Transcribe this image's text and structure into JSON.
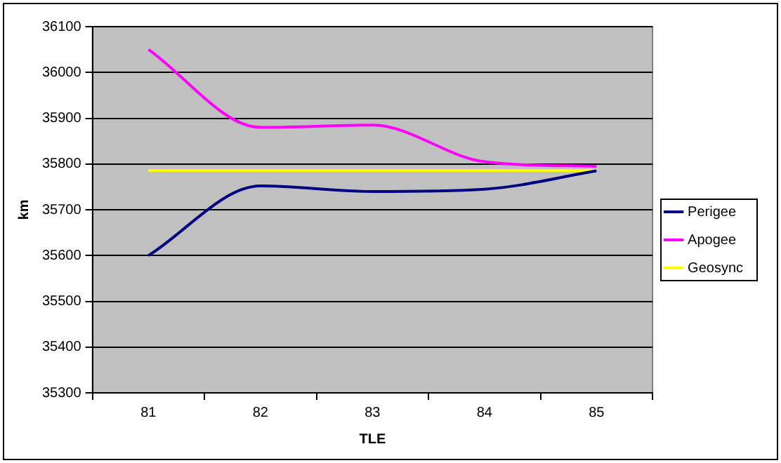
{
  "chart_data": {
    "type": "line",
    "xlabel": "TLE",
    "ylabel": "km",
    "categories": [
      "81",
      "82",
      "83",
      "84",
      "85"
    ],
    "series": [
      {
        "name": "Perigee",
        "color": "#000080",
        "values": [
          35600,
          35752,
          35740,
          35745,
          35785
        ]
      },
      {
        "name": "Apogee",
        "color": "#ff00ff",
        "values": [
          36050,
          35880,
          35885,
          35805,
          35795
        ]
      },
      {
        "name": "Geosync",
        "color": "#ffff00",
        "values": [
          35786,
          35786,
          35786,
          35786,
          35786
        ]
      }
    ],
    "ylim": [
      35300,
      36100
    ],
    "yticks": [
      35300,
      35400,
      35500,
      35600,
      35700,
      35800,
      35900,
      36000,
      36100
    ],
    "grid": "y",
    "legend": "right",
    "marker": "none",
    "line_style": "solid"
  }
}
